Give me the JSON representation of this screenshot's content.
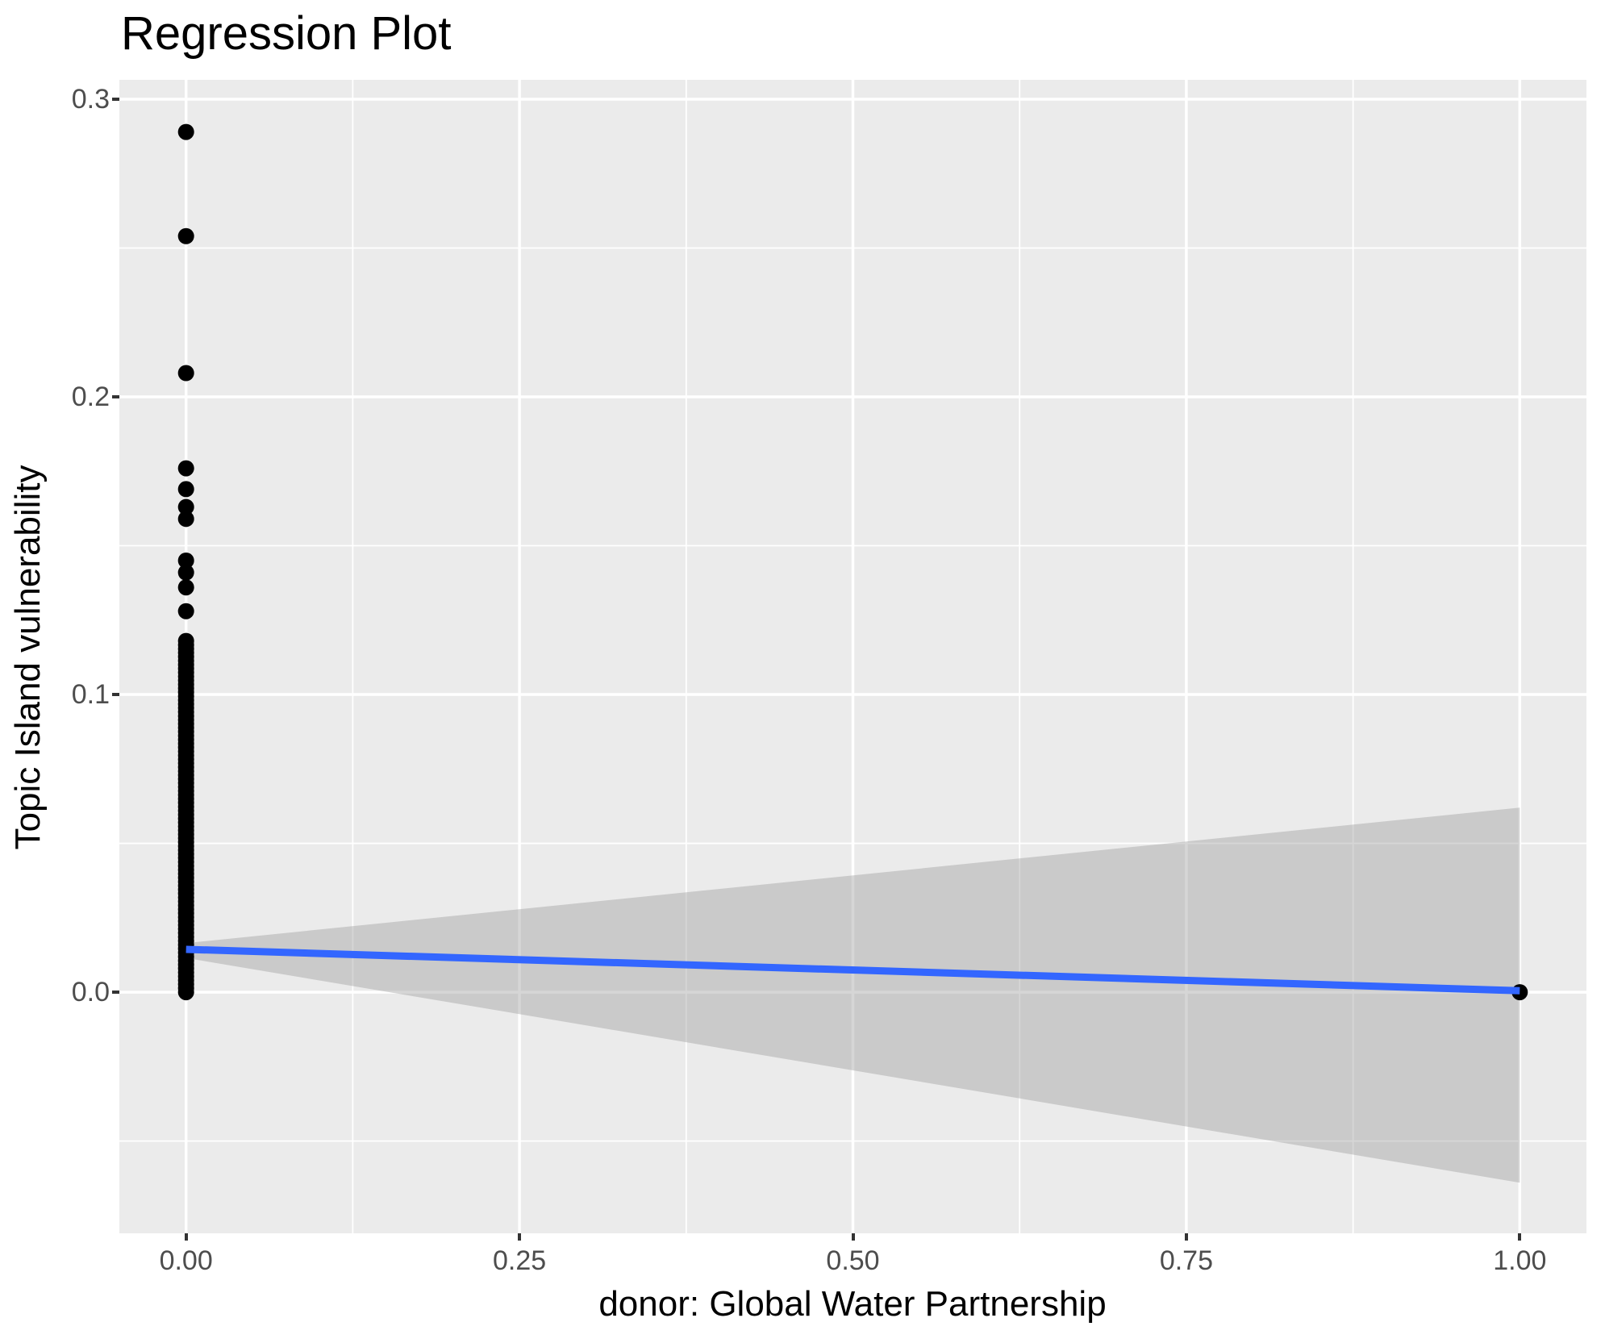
{
  "chart_data": {
    "type": "scatter",
    "title": "Regression Plot",
    "xlabel": "donor: Global Water Partnership",
    "ylabel": "Topic Island vulnerability",
    "xlim": [
      -0.05,
      1.05
    ],
    "ylim": [
      -0.081,
      0.3065
    ],
    "grid": "on",
    "x_ticks": {
      "values": [
        0.0,
        0.25,
        0.5,
        0.75,
        1.0
      ],
      "labels": [
        "0.00",
        "0.25",
        "0.50",
        "0.75",
        "1.00"
      ]
    },
    "y_ticks": {
      "values": [
        0.0,
        0.1,
        0.2,
        0.3
      ],
      "labels": [
        "0.0",
        "0.1",
        "0.2",
        "0.3"
      ]
    },
    "x_minor_ticks": [
      0.125,
      0.375,
      0.625,
      0.875
    ],
    "y_minor_ticks": [
      -0.05,
      0.05,
      0.15,
      0.25
    ],
    "scatter_points": [
      [
        0,
        0.289
      ],
      [
        0,
        0.254
      ],
      [
        0,
        0.208
      ],
      [
        0,
        0.176
      ],
      [
        0,
        0.169
      ],
      [
        0,
        0.163
      ],
      [
        0,
        0.159
      ],
      [
        0,
        0.145
      ],
      [
        0,
        0.141
      ],
      [
        0,
        0.136
      ],
      [
        0,
        0.128
      ],
      [
        1,
        0.0
      ]
    ],
    "dense_column": {
      "x": 0,
      "y_min": 0.0,
      "y_max": 0.118,
      "n_points": 90
    },
    "regression_line": {
      "x": [
        0,
        1
      ],
      "y": [
        0.0144,
        0.0005
      ]
    },
    "confidence_band": {
      "x": [
        0,
        1
      ],
      "upper": [
        0.0165,
        0.062
      ],
      "lower": [
        0.0115,
        -0.064
      ]
    },
    "colors": {
      "panel_bg": "#EBEBEB",
      "grid": "#FFFFFF",
      "point": "#000000",
      "line": "#3366FF",
      "band": "rgba(153,153,153,0.4)",
      "tick_text": "#4D4D4D",
      "tick_mark": "#333333",
      "title_text": "#000000"
    }
  }
}
